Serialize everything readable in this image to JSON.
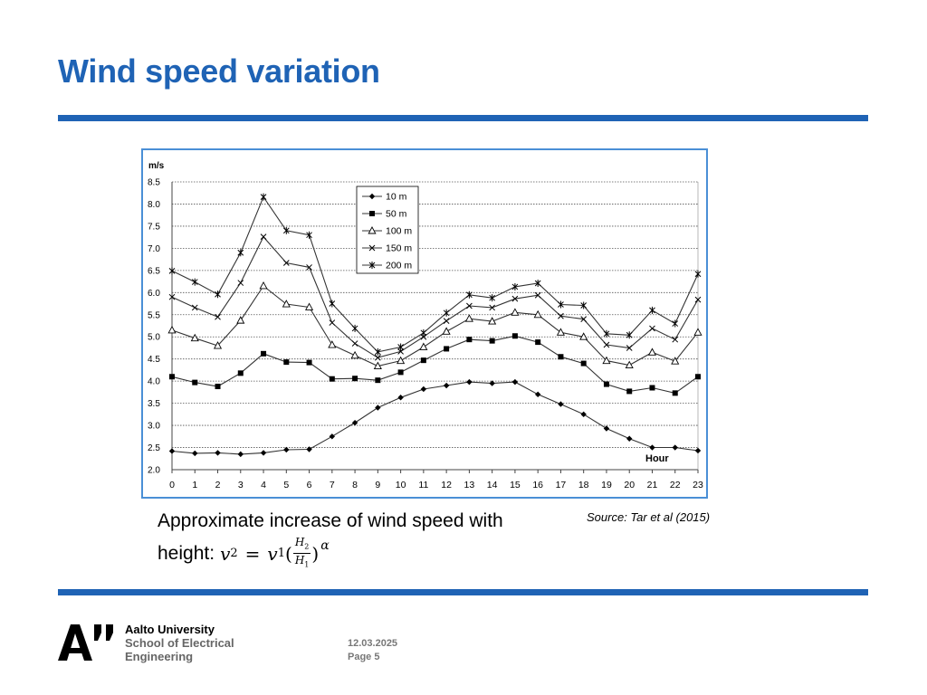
{
  "slide": {
    "title": "Wind speed variation",
    "caption_line1": "Approximate increase of wind speed with",
    "caption_line2_prefix": "height:",
    "formula": {
      "lhs": "v",
      "lhs_sub": "2",
      "eq": "=",
      "rhs": "v",
      "rhs_sub": "1",
      "num": "H",
      "num_sub": "2",
      "den": "H",
      "den_sub": "1",
      "exponent": "α"
    },
    "source": "Source: Tar et al (2015)"
  },
  "footer": {
    "university": "Aalto University",
    "school_line1": "School of Electrical",
    "school_line2": "Engineering",
    "date": "12.03.2025",
    "page": "Page 5"
  },
  "colors": {
    "brand_blue": "#1f63b5",
    "frame_blue": "#4a8fd6"
  },
  "chart_data": {
    "type": "line",
    "ylabel": "m/s",
    "xlabel": "Hour",
    "ylim": [
      2.0,
      8.5
    ],
    "ystep": 0.5,
    "grid": true,
    "legend_position": "top-center",
    "x": [
      0,
      1,
      2,
      3,
      4,
      5,
      6,
      7,
      8,
      9,
      10,
      11,
      12,
      13,
      14,
      15,
      16,
      17,
      18,
      19,
      20,
      21,
      22,
      23
    ],
    "y_tick_labels": [
      "2.0",
      "2.5",
      "3.0",
      "3.5",
      "4.0",
      "4.5",
      "5.0",
      "5.5",
      "6.0",
      "6.5",
      "7.0",
      "7.5",
      "8.0",
      "8.5"
    ],
    "series": [
      {
        "name": "10 m",
        "marker": "diamond",
        "values": [
          2.42,
          2.37,
          2.38,
          2.35,
          2.38,
          2.45,
          2.46,
          2.75,
          3.06,
          3.4,
          3.63,
          3.82,
          3.9,
          3.98,
          3.95,
          3.98,
          3.7,
          3.48,
          3.25,
          2.93,
          2.7,
          2.5,
          2.5,
          2.43
        ]
      },
      {
        "name": "50 m",
        "marker": "square",
        "values": [
          4.1,
          3.97,
          3.88,
          4.18,
          4.62,
          4.43,
          4.42,
          4.05,
          4.06,
          4.02,
          4.2,
          4.47,
          4.73,
          4.94,
          4.91,
          5.02,
          4.88,
          4.55,
          4.4,
          3.93,
          3.77,
          3.85,
          3.73,
          4.1
        ]
      },
      {
        "name": "100 m",
        "marker": "triangle",
        "values": [
          5.15,
          4.97,
          4.8,
          5.37,
          6.15,
          5.74,
          5.67,
          4.82,
          4.58,
          4.34,
          4.46,
          4.77,
          5.12,
          5.41,
          5.35,
          5.55,
          5.5,
          5.1,
          5.0,
          4.46,
          4.36,
          4.65,
          4.45,
          5.1
        ]
      },
      {
        "name": "150 m",
        "marker": "x",
        "values": [
          5.9,
          5.66,
          5.45,
          6.22,
          7.26,
          6.67,
          6.57,
          5.32,
          4.85,
          4.53,
          4.67,
          5.0,
          5.36,
          5.7,
          5.66,
          5.86,
          5.94,
          5.47,
          5.4,
          4.82,
          4.75,
          5.19,
          4.94,
          5.84
        ]
      },
      {
        "name": "200 m",
        "marker": "star",
        "values": [
          6.49,
          6.24,
          5.96,
          6.9,
          8.16,
          7.4,
          7.3,
          5.75,
          5.19,
          4.66,
          4.77,
          5.09,
          5.54,
          5.95,
          5.88,
          6.13,
          6.21,
          5.73,
          5.71,
          5.07,
          5.04,
          5.6,
          5.3,
          6.42
        ]
      }
    ]
  }
}
